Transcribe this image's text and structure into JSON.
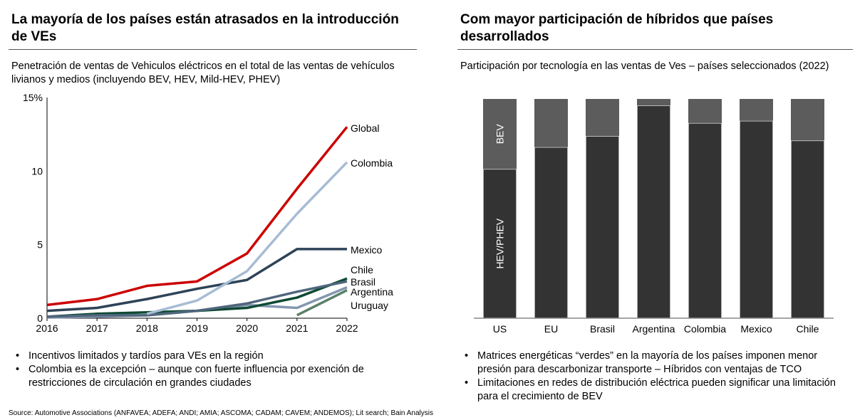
{
  "left": {
    "title": "La mayoría de los países están atrasados en la introducción de VEs",
    "subtitle": "Penetración de ventas de Vehiculos eléctricos en el total de las ventas de vehículos livianos y medios (incluyendo BEV, HEV, Mild-HEV, PHEV)",
    "bullets": [
      "Incentivos limitados y tardíos para VEs en la región",
      "Colombia es la excepción – aunque con fuerte influencia por exención de restricciones de circulación en grandes ciudades"
    ]
  },
  "right": {
    "title": "Com mayor participación de híbridos que países desarrollados",
    "subtitle": "Participación por tecnología en las ventas de Ves – países seleccionados (2022)",
    "bullets": [
      "Matrices energéticas “verdes” en la mayoría de los países imponen menor presión para descarbonizar transporte – Híbridos con ventajas de TCO",
      "Limitaciones en redes de distribución eléctrica pueden significar una limitación para el crecimiento de BEV"
    ]
  },
  "source": "Source: Automotive Associations (ANFAVEA; ADEFA; ANDI; AMIA; ASCOMA; CADAM; CAVEM; ANDEMOS); Lit search; Bain Analysis",
  "chart_data": [
    {
      "type": "line",
      "x": [
        "2016",
        "2017",
        "2018",
        "2019",
        "2020",
        "2021",
        "2022"
      ],
      "ylim": [
        0,
        15
      ],
      "yticks": [
        "0",
        "5",
        "10",
        "15%"
      ],
      "ytick_values": [
        0,
        5,
        10,
        15
      ],
      "series": [
        {
          "name": "Global",
          "color": "#cc0000",
          "values": [
            0.9,
            1.3,
            2.2,
            2.5,
            4.4,
            8.8,
            13.0
          ]
        },
        {
          "name": "Colombia",
          "color": "#a7bcd4",
          "values": [
            null,
            null,
            0.3,
            1.2,
            3.2,
            7.1,
            10.6
          ]
        },
        {
          "name": "Mexico",
          "color": "#2e4357",
          "values": [
            0.5,
            0.7,
            1.3,
            2.0,
            2.6,
            4.7,
            4.7
          ]
        },
        {
          "name": "Chile",
          "color": "#50667d",
          "values": [
            0.1,
            0.2,
            0.2,
            0.5,
            1.0,
            1.8,
            2.5
          ]
        },
        {
          "name": "Brasil",
          "color": "#0f4a33",
          "values": [
            0.1,
            0.3,
            0.4,
            0.5,
            0.7,
            1.4,
            2.7
          ]
        },
        {
          "name": "Argentina",
          "color": "#8497b0",
          "values": [
            0.05,
            0.1,
            0.2,
            0.5,
            0.9,
            0.7,
            2.1
          ]
        },
        {
          "name": "Uruguay",
          "color": "#5a8069",
          "values": [
            null,
            null,
            null,
            null,
            null,
            0.2,
            1.9
          ]
        }
      ]
    },
    {
      "type": "bar",
      "stacked": true,
      "categories": [
        "US",
        "EU",
        "Brasil",
        "Argentina",
        "Colombia",
        "Mexico",
        "Chile"
      ],
      "ylim": [
        0,
        100
      ],
      "series": [
        {
          "name": "HEV/PHEV",
          "color": "#333333",
          "values": [
            68,
            78,
            83,
            97,
            89,
            90,
            81
          ]
        },
        {
          "name": "BEV",
          "color": "#5c5c5c",
          "values": [
            32,
            22,
            17,
            3,
            11,
            10,
            19
          ]
        }
      ]
    }
  ]
}
